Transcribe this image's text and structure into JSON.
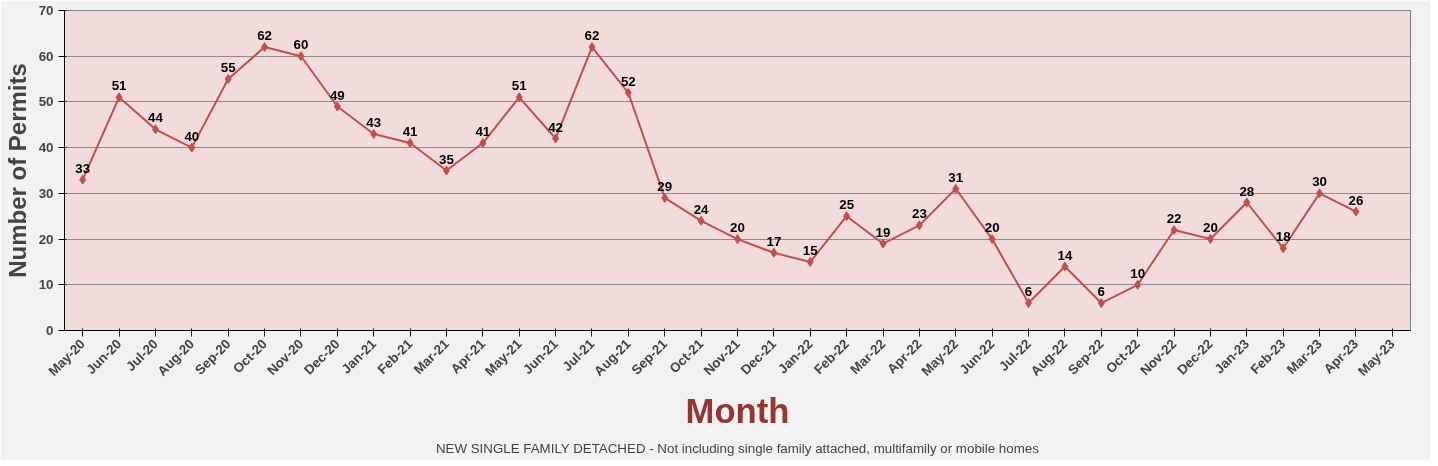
{
  "chart_data": {
    "type": "line",
    "xlabel": "Month",
    "ylabel": "Number of Permits",
    "annotations": [
      "NEW SINGLE FAMILY DETACHED - Not including single family attached, multifamily or mobile homes"
    ],
    "categories": [
      "May-20",
      "Jun-20",
      "Jul-20",
      "Aug-20",
      "Sep-20",
      "Oct-20",
      "Nov-20",
      "Dec-20",
      "Jan-21",
      "Feb-21",
      "Mar-21",
      "Apr-21",
      "May-21",
      "Jun-21",
      "Jul-21",
      "Aug-21",
      "Sep-21",
      "Oct-21",
      "Nov-21",
      "Dec-21",
      "Jan-22",
      "Feb-22",
      "Mar-22",
      "Apr-22",
      "May-22",
      "Jun-22",
      "Jul-22",
      "Aug-22",
      "Sep-22",
      "Oct-22",
      "Nov-22",
      "Dec-22",
      "Jan-23",
      "Feb-23",
      "Mar-23",
      "Apr-23",
      "May-23"
    ],
    "series": [
      {
        "color": "#c0504d",
        "values": [
          33,
          51,
          44,
          40,
          55,
          62,
          60,
          49,
          43,
          41,
          35,
          41,
          51,
          42,
          62,
          52,
          29,
          24,
          20,
          17,
          15,
          25,
          19,
          23,
          31,
          20,
          6,
          14,
          6,
          10,
          22,
          20,
          28,
          18,
          30,
          26,
          null
        ]
      }
    ],
    "ylim": [
      0,
      70
    ],
    "yticks": [
      0,
      10,
      20,
      30,
      40,
      50,
      60,
      70
    ],
    "grid": "y",
    "marker": "diamond",
    "line_style": "solid",
    "data_labels": true
  }
}
